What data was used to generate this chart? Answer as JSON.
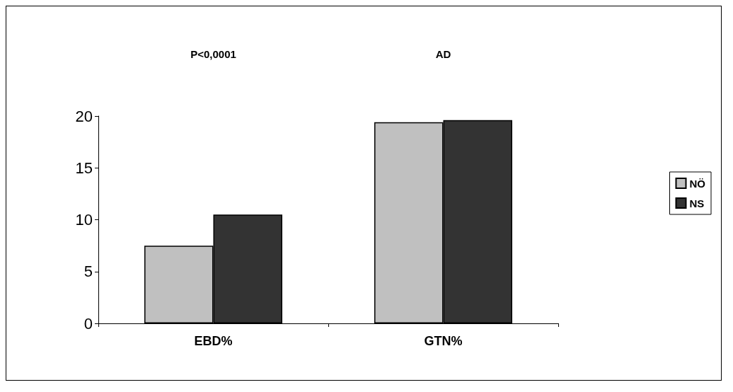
{
  "chart_data": {
    "type": "bar",
    "categories": [
      "EBD%",
      "GTN%"
    ],
    "series": [
      {
        "name": "NÖ",
        "color": "#c0c0c0",
        "values": [
          7.5,
          19.4
        ]
      },
      {
        "name": "NS",
        "color": "#333333",
        "values": [
          10.5,
          19.6
        ]
      }
    ],
    "ylim": [
      0,
      20
    ],
    "yticks": [
      0,
      5,
      10,
      15,
      20
    ],
    "grid": false,
    "legend": "right",
    "annotations": [
      "P<0,0001",
      "AD"
    ]
  }
}
